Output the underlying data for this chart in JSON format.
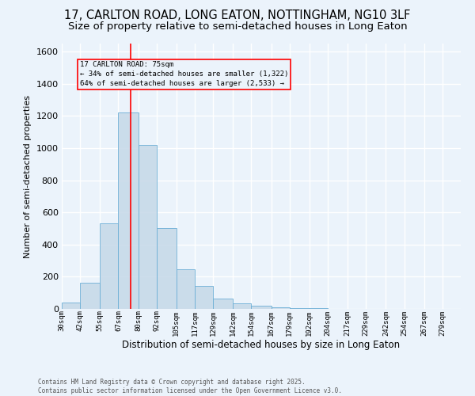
{
  "title": "17, CARLTON ROAD, LONG EATON, NOTTINGHAM, NG10 3LF",
  "subtitle": "Size of property relative to semi-detached houses in Long Eaton",
  "xlabel": "Distribution of semi-detached houses by size in Long Eaton",
  "ylabel": "Number of semi-detached properties",
  "bin_labels": [
    "30sqm",
    "42sqm",
    "55sqm",
    "67sqm",
    "80sqm",
    "92sqm",
    "105sqm",
    "117sqm",
    "129sqm",
    "142sqm",
    "154sqm",
    "167sqm",
    "179sqm",
    "192sqm",
    "204sqm",
    "217sqm",
    "229sqm",
    "242sqm",
    "254sqm",
    "267sqm",
    "279sqm"
  ],
  "bin_edges": [
    30,
    42,
    55,
    67,
    80,
    92,
    105,
    117,
    129,
    142,
    154,
    167,
    179,
    192,
    204,
    217,
    229,
    242,
    254,
    267,
    279
  ],
  "bar_heights": [
    40,
    165,
    530,
    1220,
    1020,
    500,
    245,
    145,
    65,
    35,
    20,
    10,
    5,
    5,
    0,
    0,
    0,
    0,
    0,
    0
  ],
  "bar_color": "#C5D8E8",
  "bar_edge_color": "#6BAED6",
  "bar_alpha": 0.85,
  "red_line_x": 75,
  "ylim": [
    0,
    1650
  ],
  "yticks": [
    0,
    200,
    400,
    600,
    800,
    1000,
    1200,
    1400,
    1600
  ],
  "annotation_title": "17 CARLTON ROAD: 75sqm",
  "annotation_line1": "← 34% of semi-detached houses are smaller (1,322)",
  "annotation_line2": "64% of semi-detached houses are larger (2,533) →",
  "footer_line1": "Contains HM Land Registry data © Crown copyright and database right 2025.",
  "footer_line2": "Contains public sector information licensed under the Open Government Licence v3.0.",
  "bg_color": "#EBF3FB",
  "grid_color": "#FFFFFF",
  "title_fontsize": 10.5,
  "subtitle_fontsize": 9.5
}
